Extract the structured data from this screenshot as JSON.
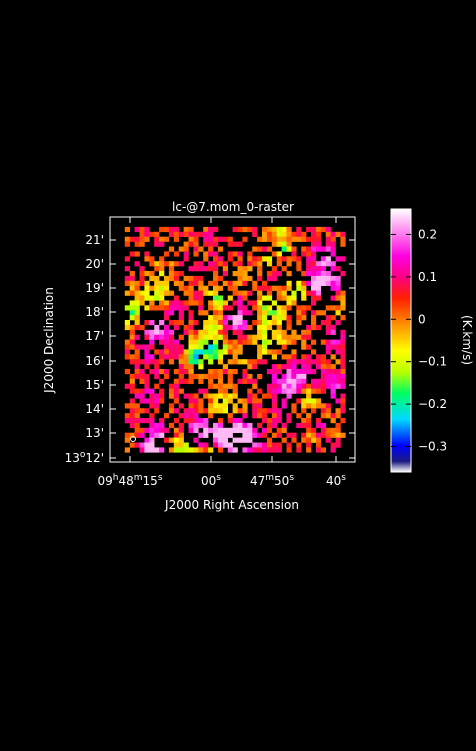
{
  "figure": {
    "title": "lc-@7.mom_0-raster",
    "xlabel": "J2000 Right Ascension",
    "ylabel": "J2000 Declination",
    "x_ticks": [
      "09h48m15s",
      "00s",
      "47m50s",
      "40s"
    ],
    "y_ticks": [
      "13°12'",
      "13'",
      "14'",
      "15'",
      "16'",
      "17'",
      "18'",
      "19'",
      "20'",
      "21'"
    ],
    "colorbar": {
      "label": "(K.km/s)",
      "ticks": [
        "0.2",
        "0.1",
        "0",
        "−0.1",
        "−0.2",
        "−0.3"
      ],
      "tick_values": [
        0.2,
        0.1,
        0.0,
        -0.1,
        -0.2,
        -0.3
      ],
      "range": [
        -0.36,
        0.26
      ]
    }
  }
}
